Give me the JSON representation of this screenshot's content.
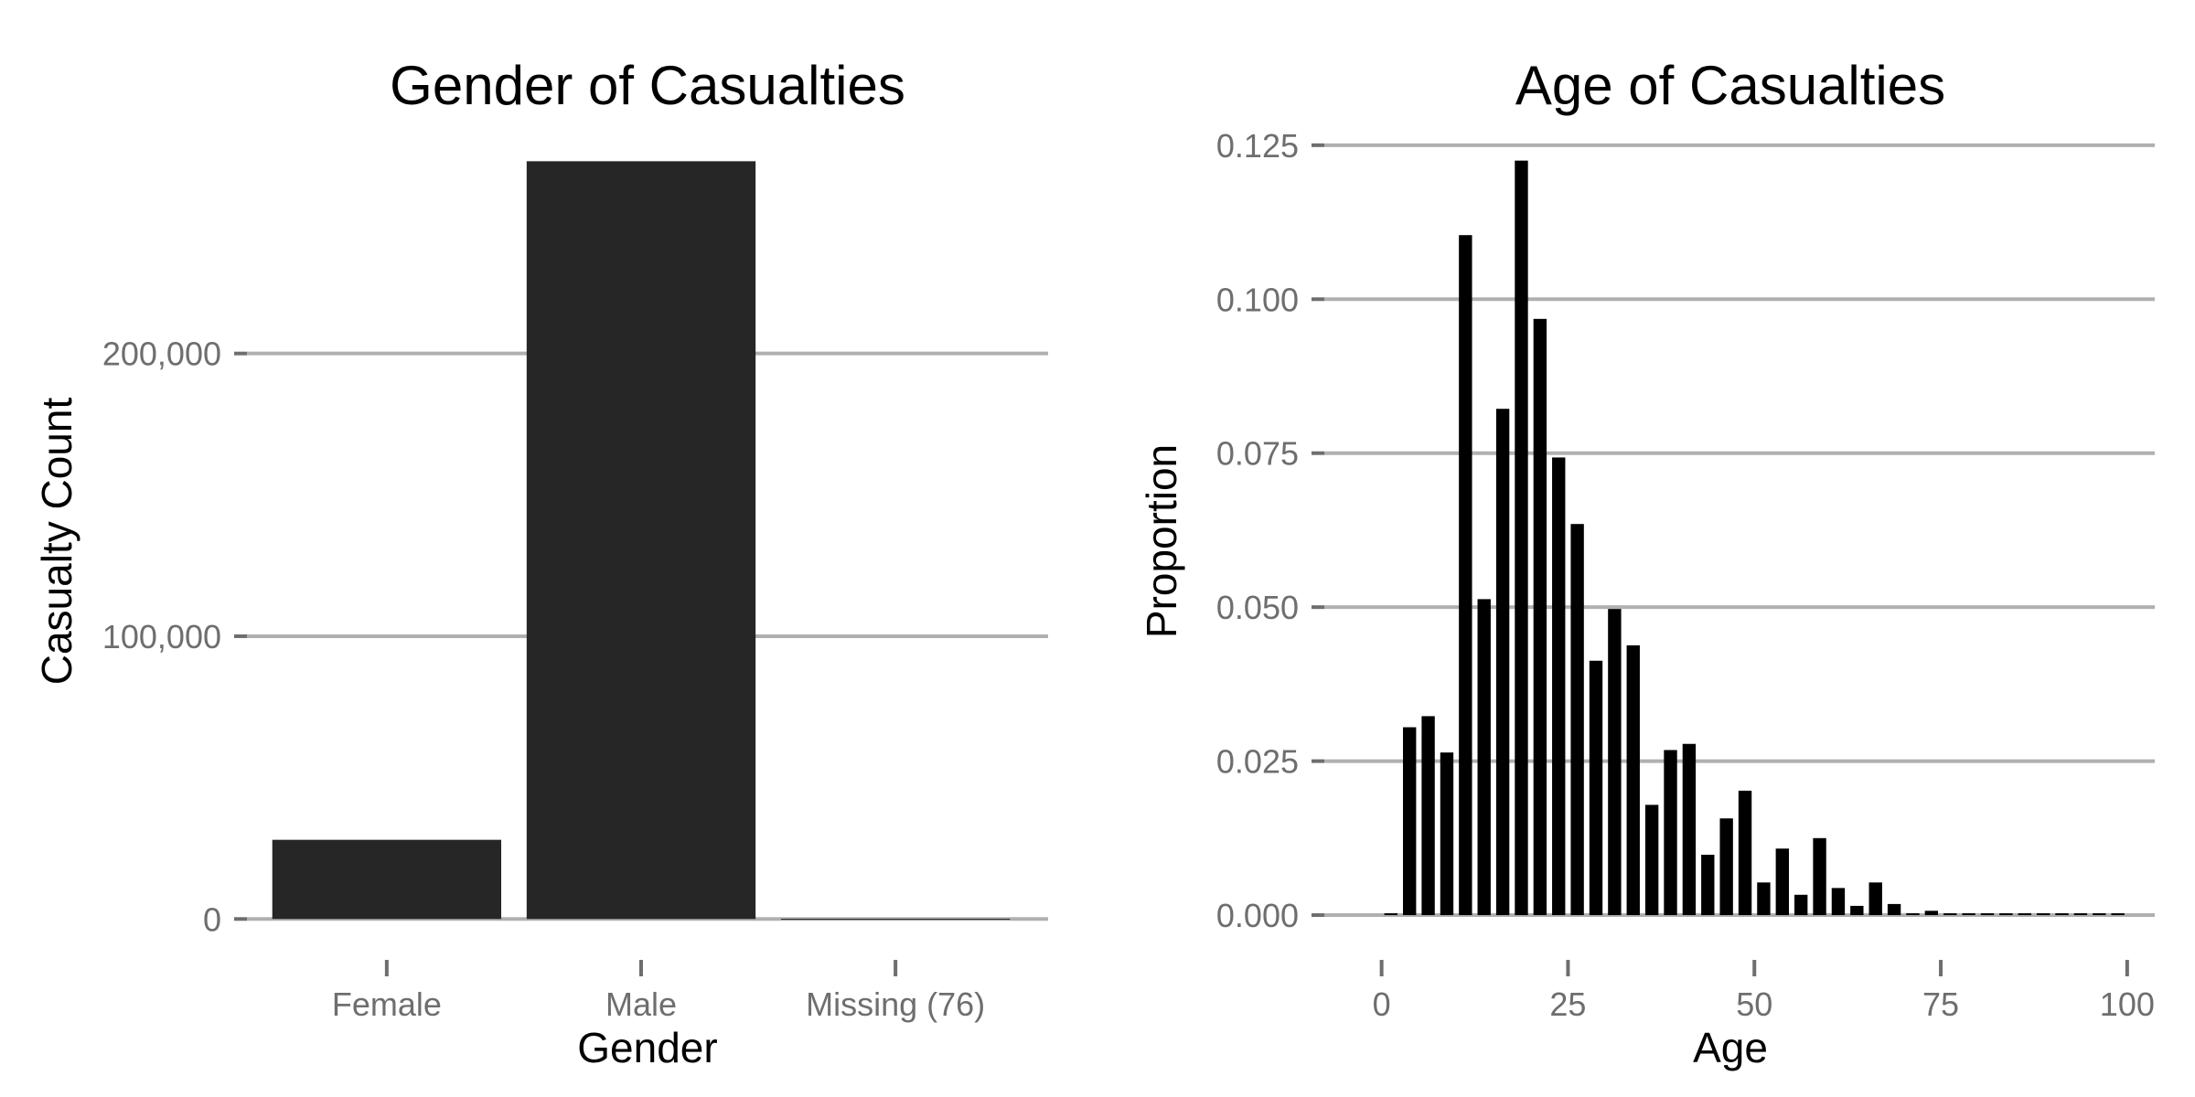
{
  "chart_data": [
    {
      "type": "bar",
      "title": "Gender of Casualties",
      "xlabel": "Gender",
      "ylabel": "Casualty Count",
      "categories": [
        "Female",
        "Male",
        "Missing (76)"
      ],
      "values": [
        28000,
        268000,
        76
      ],
      "ylim": [
        -8000,
        272000
      ],
      "yticks": [
        0,
        100000,
        200000
      ],
      "ytick_labels": [
        "0",
        "100,000",
        "200,000"
      ],
      "bar_color": "#262626",
      "grid": "horizontal major",
      "legend": "none"
    },
    {
      "type": "bar",
      "title": "Age of Casualties",
      "xlabel": "Age",
      "ylabel": "Proportion",
      "x": [
        0,
        2.5,
        5,
        7.5,
        10,
        12.5,
        15,
        17.5,
        20,
        22.5,
        25,
        27.5,
        30,
        32.5,
        35,
        37.5,
        40,
        42.5,
        45,
        47.5,
        50,
        52.5,
        55,
        57.5,
        60,
        62.5,
        65,
        67.5,
        70,
        72.5,
        75,
        77.5,
        80,
        82.5,
        85,
        87.5,
        90,
        92.5,
        95,
        97.5
      ],
      "bin_width": 2.5,
      "values": [
        0.0,
        0.0305,
        0.0323,
        0.0264,
        0.1104,
        0.0513,
        0.0822,
        0.1225,
        0.0968,
        0.0743,
        0.0635,
        0.0413,
        0.0497,
        0.0438,
        0.0179,
        0.0268,
        0.0278,
        0.0098,
        0.0157,
        0.0202,
        0.0053,
        0.0108,
        0.0033,
        0.0125,
        0.0044,
        0.0015,
        0.0053,
        0.0018,
        0.0,
        0.0007,
        0.0,
        0.0,
        0.0,
        0.0,
        0.0,
        0.0,
        0.0,
        0.0,
        0.0,
        0.0
      ],
      "xlim": [
        -9.4,
        103.7
      ],
      "ylim": [
        -0.0043,
        0.1275
      ],
      "xticks": [
        0,
        25,
        50,
        75,
        100
      ],
      "xtick_labels": [
        "0",
        "25",
        "50",
        "75",
        "100"
      ],
      "yticks": [
        0.0,
        0.025,
        0.05,
        0.075,
        0.1,
        0.125
      ],
      "ytick_labels": [
        "0.000",
        "0.025",
        "0.050",
        "0.075",
        "0.100",
        "0.125"
      ],
      "bar_color": "#000000",
      "grid": "horizontal major",
      "legend": "none"
    }
  ]
}
